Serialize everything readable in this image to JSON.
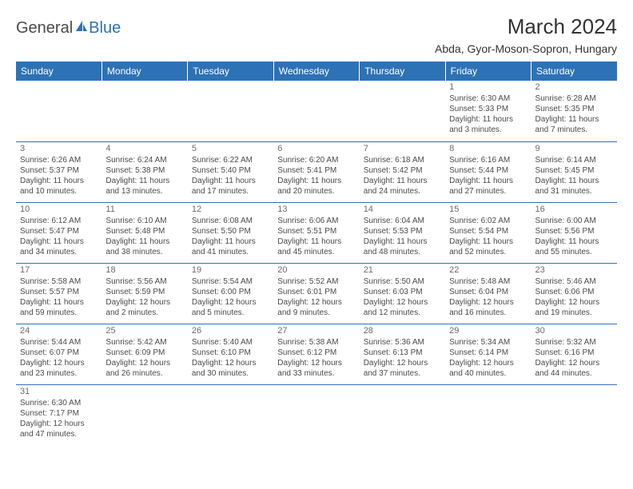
{
  "logo": {
    "text1": "General",
    "text2": "Blue"
  },
  "title": "March 2024",
  "location": "Abda, Gyor-Moson-Sopron, Hungary",
  "days_of_week": [
    "Sunday",
    "Monday",
    "Tuesday",
    "Wednesday",
    "Thursday",
    "Friday",
    "Saturday"
  ],
  "colors": {
    "header_bg": "#2d72b5",
    "header_text": "#ffffff",
    "text": "#4a4a4a",
    "border": "#2d72b5"
  },
  "weeks": [
    [
      null,
      null,
      null,
      null,
      null,
      {
        "n": "1",
        "sunrise": "6:30 AM",
        "sunset": "5:33 PM",
        "day_hours": "11",
        "day_min": "3"
      },
      {
        "n": "2",
        "sunrise": "6:28 AM",
        "sunset": "5:35 PM",
        "day_hours": "11",
        "day_min": "7"
      }
    ],
    [
      {
        "n": "3",
        "sunrise": "6:26 AM",
        "sunset": "5:37 PM",
        "day_hours": "11",
        "day_min": "10"
      },
      {
        "n": "4",
        "sunrise": "6:24 AM",
        "sunset": "5:38 PM",
        "day_hours": "11",
        "day_min": "13"
      },
      {
        "n": "5",
        "sunrise": "6:22 AM",
        "sunset": "5:40 PM",
        "day_hours": "11",
        "day_min": "17"
      },
      {
        "n": "6",
        "sunrise": "6:20 AM",
        "sunset": "5:41 PM",
        "day_hours": "11",
        "day_min": "20"
      },
      {
        "n": "7",
        "sunrise": "6:18 AM",
        "sunset": "5:42 PM",
        "day_hours": "11",
        "day_min": "24"
      },
      {
        "n": "8",
        "sunrise": "6:16 AM",
        "sunset": "5:44 PM",
        "day_hours": "11",
        "day_min": "27"
      },
      {
        "n": "9",
        "sunrise": "6:14 AM",
        "sunset": "5:45 PM",
        "day_hours": "11",
        "day_min": "31"
      }
    ],
    [
      {
        "n": "10",
        "sunrise": "6:12 AM",
        "sunset": "5:47 PM",
        "day_hours": "11",
        "day_min": "34"
      },
      {
        "n": "11",
        "sunrise": "6:10 AM",
        "sunset": "5:48 PM",
        "day_hours": "11",
        "day_min": "38"
      },
      {
        "n": "12",
        "sunrise": "6:08 AM",
        "sunset": "5:50 PM",
        "day_hours": "11",
        "day_min": "41"
      },
      {
        "n": "13",
        "sunrise": "6:06 AM",
        "sunset": "5:51 PM",
        "day_hours": "11",
        "day_min": "45"
      },
      {
        "n": "14",
        "sunrise": "6:04 AM",
        "sunset": "5:53 PM",
        "day_hours": "11",
        "day_min": "48"
      },
      {
        "n": "15",
        "sunrise": "6:02 AM",
        "sunset": "5:54 PM",
        "day_hours": "11",
        "day_min": "52"
      },
      {
        "n": "16",
        "sunrise": "6:00 AM",
        "sunset": "5:56 PM",
        "day_hours": "11",
        "day_min": "55"
      }
    ],
    [
      {
        "n": "17",
        "sunrise": "5:58 AM",
        "sunset": "5:57 PM",
        "day_hours": "11",
        "day_min": "59"
      },
      {
        "n": "18",
        "sunrise": "5:56 AM",
        "sunset": "5:59 PM",
        "day_hours": "12",
        "day_min": "2"
      },
      {
        "n": "19",
        "sunrise": "5:54 AM",
        "sunset": "6:00 PM",
        "day_hours": "12",
        "day_min": "5"
      },
      {
        "n": "20",
        "sunrise": "5:52 AM",
        "sunset": "6:01 PM",
        "day_hours": "12",
        "day_min": "9"
      },
      {
        "n": "21",
        "sunrise": "5:50 AM",
        "sunset": "6:03 PM",
        "day_hours": "12",
        "day_min": "12"
      },
      {
        "n": "22",
        "sunrise": "5:48 AM",
        "sunset": "6:04 PM",
        "day_hours": "12",
        "day_min": "16"
      },
      {
        "n": "23",
        "sunrise": "5:46 AM",
        "sunset": "6:06 PM",
        "day_hours": "12",
        "day_min": "19"
      }
    ],
    [
      {
        "n": "24",
        "sunrise": "5:44 AM",
        "sunset": "6:07 PM",
        "day_hours": "12",
        "day_min": "23"
      },
      {
        "n": "25",
        "sunrise": "5:42 AM",
        "sunset": "6:09 PM",
        "day_hours": "12",
        "day_min": "26"
      },
      {
        "n": "26",
        "sunrise": "5:40 AM",
        "sunset": "6:10 PM",
        "day_hours": "12",
        "day_min": "30"
      },
      {
        "n": "27",
        "sunrise": "5:38 AM",
        "sunset": "6:12 PM",
        "day_hours": "12",
        "day_min": "33"
      },
      {
        "n": "28",
        "sunrise": "5:36 AM",
        "sunset": "6:13 PM",
        "day_hours": "12",
        "day_min": "37"
      },
      {
        "n": "29",
        "sunrise": "5:34 AM",
        "sunset": "6:14 PM",
        "day_hours": "12",
        "day_min": "40"
      },
      {
        "n": "30",
        "sunrise": "5:32 AM",
        "sunset": "6:16 PM",
        "day_hours": "12",
        "day_min": "44"
      }
    ],
    [
      {
        "n": "31",
        "sunrise": "6:30 AM",
        "sunset": "7:17 PM",
        "day_hours": "12",
        "day_min": "47"
      },
      null,
      null,
      null,
      null,
      null,
      null
    ]
  ]
}
